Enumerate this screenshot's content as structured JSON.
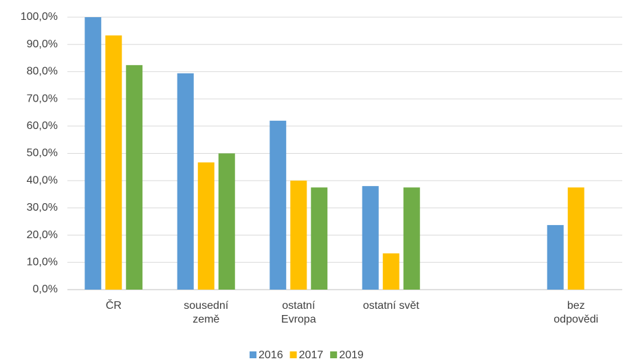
{
  "chart_data": {
    "type": "bar",
    "categories": [
      "ČR",
      "sousední\nzemě",
      "ostatní\nEvropa",
      "ostatní svět",
      null,
      "bez odpovědi"
    ],
    "series": [
      {
        "name": "2016",
        "color": "#5b9bd5",
        "values": [
          100,
          79.4,
          62,
          38,
          null,
          23.7
        ]
      },
      {
        "name": "2017",
        "color": "#ffc000",
        "values": [
          93.3,
          46.7,
          40,
          13.3,
          null,
          37.5
        ]
      },
      {
        "name": "2019",
        "color": "#70ad47",
        "values": [
          82.4,
          50,
          37.5,
          37.5,
          null,
          null
        ]
      }
    ],
    "ylim": [
      0,
      100
    ],
    "yticks": [
      {
        "value": 0,
        "label": "0,0%"
      },
      {
        "value": 10,
        "label": "10,0%"
      },
      {
        "value": 20,
        "label": "20,0%"
      },
      {
        "value": 30,
        "label": "30,0%"
      },
      {
        "value": 40,
        "label": "40,0%"
      },
      {
        "value": 50,
        "label": "50,0%"
      },
      {
        "value": 60,
        "label": "60,0%"
      },
      {
        "value": 70,
        "label": "70,0%"
      },
      {
        "value": 80,
        "label": "80,0%"
      },
      {
        "value": 90,
        "label": "90,0%"
      },
      {
        "value": 100,
        "label": "100,0%"
      }
    ],
    "grid": true,
    "legend": "bottom"
  }
}
